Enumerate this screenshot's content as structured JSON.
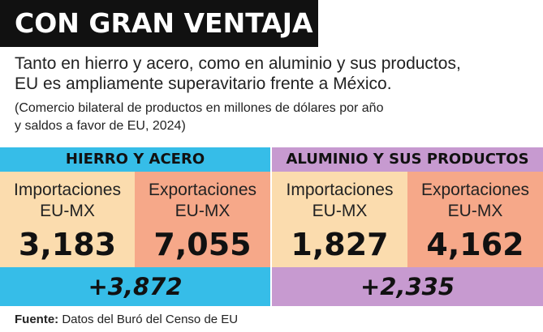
{
  "title": "CON GRAN VENTAJA",
  "subtitle_line1": "Tanto en hierro y acero, como en aluminio y sus productos,",
  "subtitle_line2": "EU es ampliamente superavitario frente a México.",
  "note_line1": "(Comercio bilateral de productos en millones de dólares por año",
  "note_line2": "y saldos a favor de EU, 2024)",
  "source": {
    "label": "Fuente:",
    "text": "Datos del Buró del Censo de EU"
  },
  "colors": {
    "iron_header": "#36bde8",
    "aluminum_header": "#c79ad0",
    "imports_cell": "#fbdcae",
    "exports_cell": "#f6a889",
    "title_bar": "#111111"
  },
  "chart_data": {
    "type": "table",
    "unit_note": "millones de dólares por año",
    "groups": [
      {
        "name": "HIERRO Y ACERO",
        "imports": {
          "label_line1": "Importaciones",
          "label_line2": "EU-MX",
          "value": 3183,
          "value_text": "3,183"
        },
        "exports": {
          "label_line1": "Exportaciones",
          "label_line2": "EU-MX",
          "value": 7055,
          "value_text": "7,055"
        },
        "balance": {
          "value": 3872,
          "value_text": "+3,872"
        }
      },
      {
        "name": "ALUMINIO Y SUS PRODUCTOS",
        "imports": {
          "label_line1": "Importaciones",
          "label_line2": "EU-MX",
          "value": 1827,
          "value_text": "1,827"
        },
        "exports": {
          "label_line1": "Exportaciones",
          "label_line2": "EU-MX",
          "value": 4162,
          "value_text": "4,162"
        },
        "balance": {
          "value": 2335,
          "value_text": "+2,335"
        }
      }
    ]
  }
}
